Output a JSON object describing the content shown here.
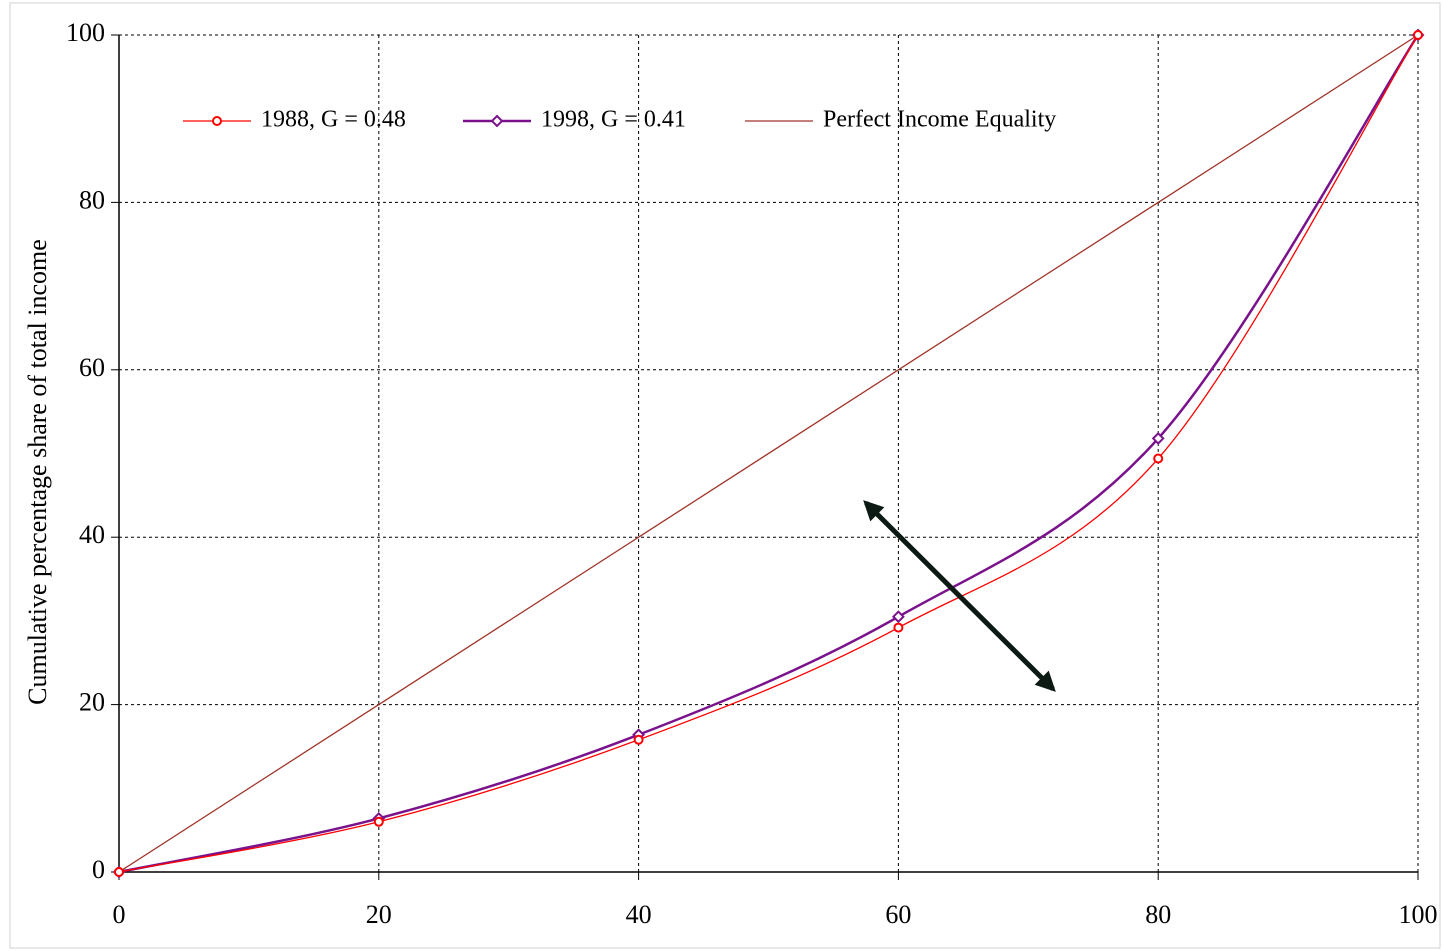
{
  "chart_data": {
    "type": "line",
    "y_label": "Cumulative percentage share of total  income",
    "x": [
      0,
      20,
      40,
      60,
      80,
      100
    ],
    "series": [
      {
        "name": "1988, G = 0.48",
        "color": "#ff0000",
        "marker": "circle",
        "values": [
          0,
          6,
          15.8,
          29.2,
          49.4,
          100
        ]
      },
      {
        "name": "1998, G = 0.41",
        "color": "#7a128c",
        "marker": "diamond",
        "values": [
          0,
          6.4,
          16.4,
          30.5,
          51.8,
          100
        ]
      },
      {
        "name": "Perfect Income Equality",
        "color": "#a0342a",
        "marker": null,
        "values": [
          0,
          20,
          40,
          60,
          80,
          100
        ]
      }
    ],
    "xlim": [
      0,
      100
    ],
    "xticks": [
      0,
      20,
      40,
      60,
      80,
      100
    ],
    "ylim": [
      0,
      100
    ],
    "yticks": [
      0,
      20,
      40,
      60,
      80,
      100
    ],
    "grid": true,
    "legend": "top"
  }
}
